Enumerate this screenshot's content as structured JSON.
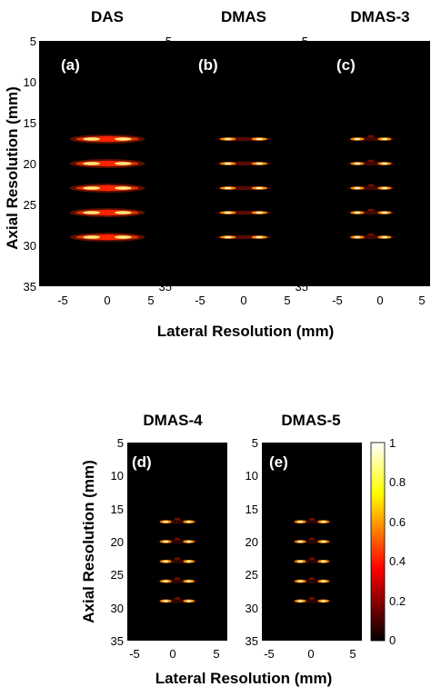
{
  "chart_data": {
    "type": "heatmap",
    "colormap": "hot",
    "x_tick_labels": [
      "-5",
      "0",
      "5"
    ],
    "y_tick_labels": [
      "5",
      "10",
      "15",
      "20",
      "25",
      "30",
      "35"
    ],
    "xlim": [
      -6.5,
      6.5
    ],
    "ylim": [
      5,
      35
    ],
    "y_inverted": true,
    "point_targets": {
      "lateral_mm": [
        -1.5,
        1.5
      ],
      "axial_mm": [
        17,
        20,
        23,
        26,
        29
      ]
    },
    "colorbar": {
      "range": [
        0,
        1
      ],
      "tick_labels": [
        "0",
        "0.2",
        "0.4",
        "0.6",
        "0.8",
        "1"
      ]
    },
    "xlabel": "Lateral Resolution (mm)",
    "ylabel": "Axial Resolution (mm)",
    "panels": [
      {
        "label": "(a)",
        "title": "DAS"
      },
      {
        "label": "(b)",
        "title": "DMAS"
      },
      {
        "label": "(c)",
        "title": "DMAS-3"
      },
      {
        "label": "(d)",
        "title": "DMAS-4"
      },
      {
        "label": "(e)",
        "title": "DMAS-5"
      }
    ]
  }
}
